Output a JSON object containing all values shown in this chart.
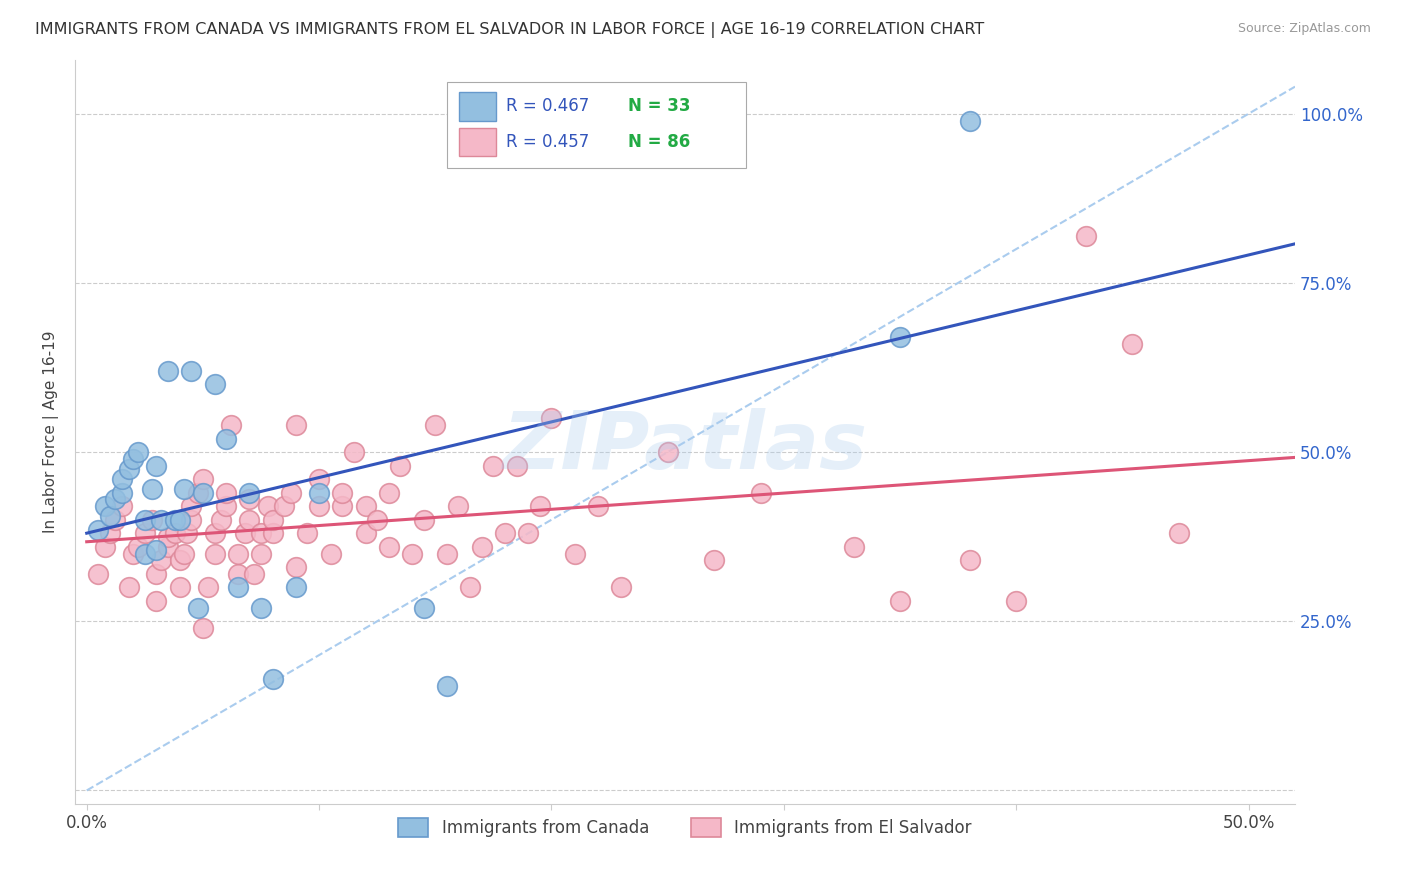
{
  "title": "IMMIGRANTS FROM CANADA VS IMMIGRANTS FROM EL SALVADOR IN LABOR FORCE | AGE 16-19 CORRELATION CHART",
  "source": "Source: ZipAtlas.com",
  "ylabel": "In Labor Force | Age 16-19",
  "ytick_positions": [
    0.0,
    0.25,
    0.5,
    0.75,
    1.0
  ],
  "ytick_labels": [
    "",
    "25.0%",
    "50.0%",
    "75.0%",
    "100.0%"
  ],
  "xtick_positions": [
    0.0,
    0.1,
    0.2,
    0.3,
    0.4,
    0.5
  ],
  "xtick_labels": [
    "0.0%",
    "",
    "",
    "",
    "",
    "50.0%"
  ],
  "xlim": [
    -0.005,
    0.52
  ],
  "ylim": [
    -0.02,
    1.08
  ],
  "canada_color": "#93bfe0",
  "salvador_color": "#f5b8c8",
  "canada_edge_color": "#6699cc",
  "salvador_edge_color": "#dd8899",
  "canada_line_color": "#3355bb",
  "salvador_line_color": "#dd5577",
  "diagonal_color": "#aaccee",
  "watermark": "ZIPatlas",
  "watermark_color": "#aaccee",
  "grid_color": "#cccccc",
  "canada_x": [
    0.005,
    0.008,
    0.01,
    0.012,
    0.015,
    0.015,
    0.018,
    0.02,
    0.022,
    0.025,
    0.025,
    0.028,
    0.03,
    0.03,
    0.032,
    0.035,
    0.038,
    0.04,
    0.042,
    0.045,
    0.048,
    0.05,
    0.055,
    0.06,
    0.065,
    0.07,
    0.075,
    0.08,
    0.09,
    0.1,
    0.145,
    0.155,
    0.35,
    0.38
  ],
  "canada_y": [
    0.385,
    0.42,
    0.405,
    0.43,
    0.44,
    0.46,
    0.475,
    0.49,
    0.5,
    0.35,
    0.4,
    0.445,
    0.48,
    0.355,
    0.4,
    0.62,
    0.4,
    0.4,
    0.445,
    0.62,
    0.27,
    0.44,
    0.6,
    0.52,
    0.3,
    0.44,
    0.27,
    0.165,
    0.3,
    0.44,
    0.27,
    0.155,
    0.67,
    0.99
  ],
  "salvador_x": [
    0.005,
    0.008,
    0.01,
    0.012,
    0.015,
    0.018,
    0.02,
    0.022,
    0.025,
    0.028,
    0.03,
    0.03,
    0.032,
    0.035,
    0.035,
    0.038,
    0.04,
    0.04,
    0.042,
    0.043,
    0.045,
    0.045,
    0.048,
    0.05,
    0.05,
    0.052,
    0.055,
    0.055,
    0.058,
    0.06,
    0.06,
    0.062,
    0.065,
    0.065,
    0.068,
    0.07,
    0.07,
    0.072,
    0.075,
    0.075,
    0.078,
    0.08,
    0.08,
    0.085,
    0.088,
    0.09,
    0.09,
    0.095,
    0.1,
    0.1,
    0.105,
    0.11,
    0.11,
    0.115,
    0.12,
    0.12,
    0.125,
    0.13,
    0.13,
    0.135,
    0.14,
    0.145,
    0.15,
    0.155,
    0.16,
    0.165,
    0.17,
    0.175,
    0.18,
    0.185,
    0.19,
    0.195,
    0.2,
    0.21,
    0.22,
    0.23,
    0.25,
    0.27,
    0.29,
    0.33,
    0.35,
    0.38,
    0.4,
    0.43,
    0.45,
    0.47
  ],
  "salvador_y": [
    0.32,
    0.36,
    0.38,
    0.4,
    0.42,
    0.3,
    0.35,
    0.36,
    0.38,
    0.4,
    0.28,
    0.32,
    0.34,
    0.36,
    0.375,
    0.38,
    0.3,
    0.34,
    0.35,
    0.38,
    0.4,
    0.42,
    0.44,
    0.46,
    0.24,
    0.3,
    0.35,
    0.38,
    0.4,
    0.42,
    0.44,
    0.54,
    0.32,
    0.35,
    0.38,
    0.4,
    0.43,
    0.32,
    0.35,
    0.38,
    0.42,
    0.38,
    0.4,
    0.42,
    0.44,
    0.54,
    0.33,
    0.38,
    0.42,
    0.46,
    0.35,
    0.42,
    0.44,
    0.5,
    0.38,
    0.42,
    0.4,
    0.44,
    0.36,
    0.48,
    0.35,
    0.4,
    0.54,
    0.35,
    0.42,
    0.3,
    0.36,
    0.48,
    0.38,
    0.48,
    0.38,
    0.42,
    0.55,
    0.35,
    0.42,
    0.3,
    0.5,
    0.34,
    0.44,
    0.36,
    0.28,
    0.34,
    0.28,
    0.82,
    0.66,
    0.38
  ]
}
